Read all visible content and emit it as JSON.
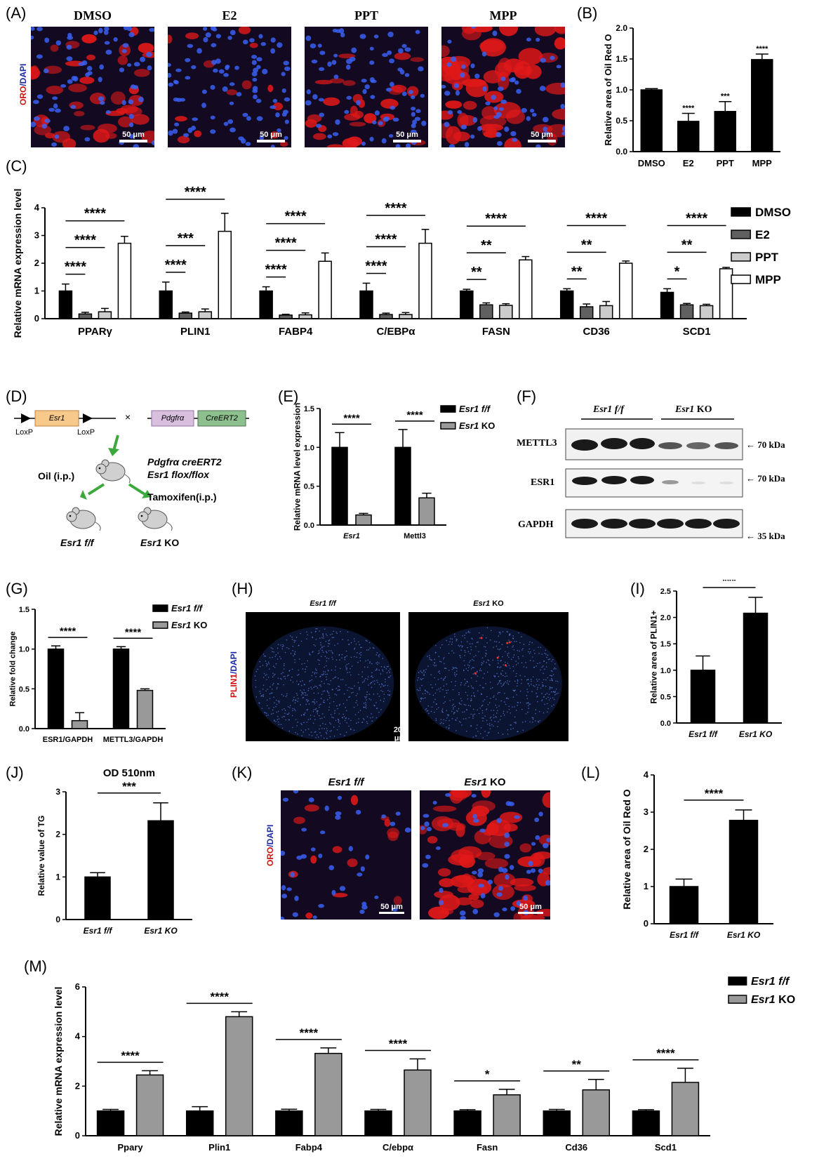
{
  "panels": {
    "A": {
      "label": "(A)",
      "stain": [
        "ORO",
        "/DAPI"
      ],
      "images": [
        {
          "title": "DMSO",
          "scale": "50 μm"
        },
        {
          "title": "E2",
          "scale": "50 μm"
        },
        {
          "title": "PPT",
          "scale": "50 μm"
        },
        {
          "title": "MPP",
          "scale": "50 μm"
        }
      ]
    },
    "B": {
      "label": "(B)"
    },
    "C": {
      "label": "(C)"
    },
    "D": {
      "label": "(D)",
      "gene1": "Esr1",
      "loxp1": "LoxP",
      "loxp2": "LoxP",
      "cross": "×",
      "gene2": "Pdgfrα",
      "gene3": "CreERT2",
      "mouse_line1": "Pdgfrα creERT2",
      "mouse_line2": "Esr1 flox/flox",
      "oil": "Oil (i.p.)",
      "tamoxifen": "Tamoxifen(i.p.)",
      "ff_gene": "Esr1",
      "ff_suffix": " f/f",
      "ko_gene": "Esr1",
      "ko_suffix": " KO"
    },
    "E": {
      "label": "(E)"
    },
    "F": {
      "label": "(F)",
      "group1_gene": "Esr1",
      "group1_suffix": " f/f",
      "group2_gene": "Esr1",
      "group2_suffix": " KO",
      "rows": [
        {
          "name": "METTL3",
          "size": "← 70 kDa"
        },
        {
          "name": "ESR1",
          "size": "← 70 kDa"
        },
        {
          "name": "GAPDH",
          "size": "← 35 kDa"
        }
      ]
    },
    "G": {
      "label": "(G)"
    },
    "H": {
      "label": "(H)",
      "stain": [
        "PLIN1",
        "/DAPI"
      ],
      "images": [
        {
          "title_gene": "Esr1",
          "title_suffix": " f/f",
          "scale": "200 μm"
        },
        {
          "title_gene": "Esr1",
          "title_suffix": " KO",
          "scale": "200 μm"
        }
      ]
    },
    "I": {
      "label": "(I)"
    },
    "J": {
      "label": "(J)"
    },
    "K": {
      "label": "(K)",
      "stain": [
        "ORO",
        "/DAPI"
      ],
      "images": [
        {
          "title_gene": "Esr1",
          "title_suffix": " f/f",
          "scale": "50 μm"
        },
        {
          "title_gene": "Esr1",
          "title_suffix": " KO",
          "scale": "50 μm"
        }
      ]
    },
    "L": {
      "label": "(L)"
    },
    "M": {
      "label": "(M)"
    }
  },
  "chart_data": [
    {
      "id": "B",
      "type": "bar",
      "categories": [
        "DMSO",
        "E2",
        "PPT",
        "MPP"
      ],
      "values": [
        1.0,
        0.49,
        0.65,
        1.49
      ],
      "errors": [
        0.02,
        0.13,
        0.16,
        0.09
      ],
      "significance": [
        "",
        "****",
        "***",
        "****"
      ],
      "ylabel": "Relative area of Oil Red O",
      "ylim": [
        0,
        2.0
      ],
      "yticks": [
        "0.0",
        "0.5",
        "1.0",
        "1.5",
        "2.0"
      ],
      "colors": [
        "#000000"
      ]
    },
    {
      "id": "C",
      "type": "bar",
      "categories": [
        "PPARγ",
        "PLIN1",
        "FABP4",
        "C/EBPα",
        "FASN",
        "CD36",
        "SCD1"
      ],
      "series": [
        {
          "name": "DMSO",
          "values": [
            1.0,
            1.0,
            1.0,
            1.0,
            1.0,
            1.0,
            0.95
          ],
          "errors": [
            0.25,
            0.32,
            0.15,
            0.28,
            0.06,
            0.08,
            0.13
          ]
        },
        {
          "name": "E2",
          "values": [
            0.17,
            0.2,
            0.13,
            0.15,
            0.5,
            0.43,
            0.5
          ],
          "errors": [
            0.06,
            0.04,
            0.03,
            0.05,
            0.07,
            0.1,
            0.05
          ]
        },
        {
          "name": "PPT",
          "values": [
            0.25,
            0.25,
            0.14,
            0.15,
            0.48,
            0.47,
            0.47
          ],
          "errors": [
            0.12,
            0.1,
            0.07,
            0.07,
            0.06,
            0.15,
            0.05
          ]
        },
        {
          "name": "MPP",
          "values": [
            2.72,
            3.15,
            2.07,
            2.72,
            2.12,
            2.0,
            1.8
          ],
          "errors": [
            0.25,
            0.65,
            0.3,
            0.5,
            0.12,
            0.08,
            0.05
          ]
        }
      ],
      "significance": [
        [
          "****",
          "****",
          "****"
        ],
        [
          "****",
          "***",
          "****"
        ],
        [
          "****",
          "****",
          "****"
        ],
        [
          "****",
          "****",
          "****"
        ],
        [
          "**",
          "**",
          "****"
        ],
        [
          "**",
          "**",
          "****"
        ],
        [
          "*",
          "**",
          "****"
        ]
      ],
      "ylabel": "Relative mRNA expression level",
      "ylim": [
        0,
        4
      ],
      "yticks": [
        "0",
        "1",
        "2",
        "3",
        "4"
      ],
      "colors": [
        "#000000",
        "#606060",
        "#cccccc",
        "#ffffff"
      ]
    },
    {
      "id": "E",
      "type": "bar",
      "categories": [
        "Esr1",
        "Mettl3"
      ],
      "series": [
        {
          "name": "Esr1 f/f",
          "values": [
            1.0,
            1.0
          ],
          "errors": [
            0.19,
            0.23
          ]
        },
        {
          "name": "Esr1 KO",
          "values": [
            0.13,
            0.35
          ],
          "errors": [
            0.02,
            0.06
          ]
        }
      ],
      "significance": [
        "****",
        "****"
      ],
      "ylabel": "Relative mRNA level expression",
      "ylim": [
        0,
        1.5
      ],
      "yticks": [
        "0.0",
        "0.5",
        "1.0",
        "1.5"
      ],
      "colors": [
        "#000000",
        "#999999"
      ]
    },
    {
      "id": "G",
      "type": "bar",
      "categories": [
        "ESR1/GAPDH",
        "METTL3/GAPDH"
      ],
      "series": [
        {
          "name": "Esr1 f/f",
          "values": [
            1.0,
            1.0
          ],
          "errors": [
            0.04,
            0.03
          ]
        },
        {
          "name": "Esr1 KO",
          "values": [
            0.1,
            0.48
          ],
          "errors": [
            0.1,
            0.02
          ]
        }
      ],
      "significance": [
        "****",
        "****"
      ],
      "ylabel": "Relative fold change",
      "ylim": [
        0,
        1.5
      ],
      "yticks": [
        "0.0",
        "0.5",
        "1.0",
        "1.5"
      ],
      "colors": [
        "#000000",
        "#999999"
      ]
    },
    {
      "id": "I",
      "type": "bar",
      "categories": [
        "Esr1 f/f",
        "Esr1 KO"
      ],
      "values": [
        1.0,
        2.08
      ],
      "errors": [
        0.27,
        0.3
      ],
      "significance": [
        "***"
      ],
      "ylabel": "Relative area of PLIN1+",
      "ylim": [
        0,
        2.5
      ],
      "yticks": [
        "0.0",
        "0.5",
        "1.0",
        "1.5",
        "2.0",
        "2.5"
      ],
      "colors": [
        "#000000"
      ]
    },
    {
      "id": "J",
      "type": "bar",
      "title": "OD 510nm",
      "categories": [
        "Esr1 f/f",
        "Esr1 KO"
      ],
      "values": [
        1.0,
        2.32
      ],
      "errors": [
        0.1,
        0.42
      ],
      "significance": [
        "***"
      ],
      "ylabel": "Relative value of TG",
      "ylim": [
        0,
        3
      ],
      "yticks": [
        "0",
        "1",
        "2",
        "3"
      ],
      "colors": [
        "#000000"
      ]
    },
    {
      "id": "L",
      "type": "bar",
      "categories": [
        "Esr1 f/f",
        "Esr1 KO"
      ],
      "values": [
        1.0,
        2.78
      ],
      "errors": [
        0.2,
        0.28
      ],
      "significance": [
        "****"
      ],
      "ylabel": "Relative area of Oil Red O",
      "ylim": [
        0,
        4
      ],
      "yticks": [
        "0",
        "1",
        "2",
        "3",
        "4"
      ],
      "colors": [
        "#000000"
      ]
    },
    {
      "id": "M",
      "type": "bar",
      "categories": [
        "Ppary",
        "Plin1",
        "Fabp4",
        "C/ebpα",
        "Fasn",
        "Cd36",
        "Scd1"
      ],
      "series": [
        {
          "name": "Esr1 f/f",
          "values": [
            1.0,
            1.0,
            1.0,
            1.0,
            1.0,
            1.0,
            1.0
          ],
          "errors": [
            0.06,
            0.17,
            0.07,
            0.06,
            0.05,
            0.06,
            0.05
          ]
        },
        {
          "name": "Esr1 KO",
          "values": [
            2.45,
            4.8,
            3.32,
            2.65,
            1.65,
            1.85,
            2.15
          ],
          "errors": [
            0.17,
            0.2,
            0.22,
            0.45,
            0.22,
            0.42,
            0.57
          ]
        }
      ],
      "significance": [
        "****",
        "****",
        "****",
        "****",
        "*",
        "**",
        "****"
      ],
      "ylabel": "Relative mRNA expression level",
      "ylim": [
        0,
        6
      ],
      "yticks": [
        "0",
        "2",
        "4",
        "6"
      ],
      "colors": [
        "#000000",
        "#999999"
      ]
    }
  ]
}
